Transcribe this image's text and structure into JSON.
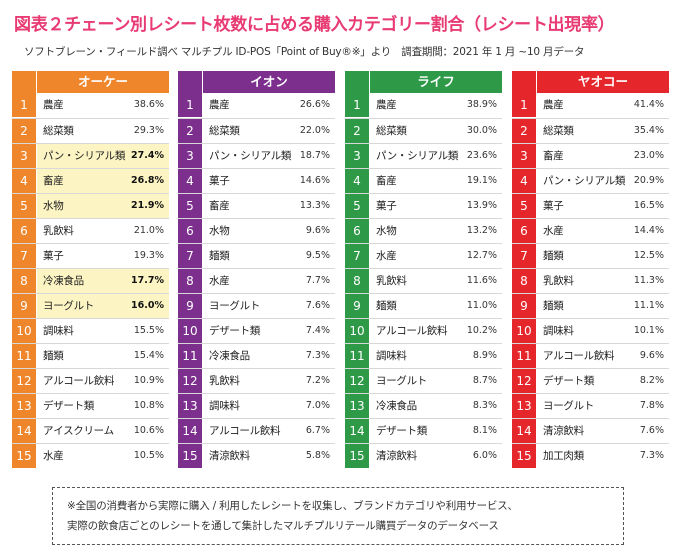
{
  "title": "図表２チェーン別レシート枚数に占める購入カテゴリー割合（レシート出現率）",
  "subtitle": "ソフトブレーン・フィールド調べ マルチプル ID-POS「Point of Buy®※」より　調査期間：2021 年 1 月 ~10 月データ",
  "note_lines": [
    "※全国の消費者から実際に購入 / 利用したレシートを収集し、ブランドカテゴリや利用サービス、",
    "実際の飲食店ごとのレシートを通して集計したマルチプルリテール購買データのデータベース"
  ],
  "chart_data": {
    "type": "table",
    "title": "図表２チェーン別レシート枚数に占める購入カテゴリー割合（レシート出現率）",
    "value_unit": "%",
    "highlight_color": "#fcf4c3",
    "chains": [
      {
        "name": "オーケー",
        "color": "#f0862c",
        "rows": [
          {
            "rank": "1",
            "category": "農産",
            "value": 38.6,
            "label": "38.6%",
            "highlight": false
          },
          {
            "rank": "2",
            "category": "総菜類",
            "value": 29.3,
            "label": "29.3%",
            "highlight": false
          },
          {
            "rank": "3",
            "category": "パン・シリアル類",
            "value": 27.4,
            "label": "27.4%",
            "highlight": true
          },
          {
            "rank": "4",
            "category": "畜産",
            "value": 26.8,
            "label": "26.8%",
            "highlight": true
          },
          {
            "rank": "5",
            "category": "水物",
            "value": 21.9,
            "label": "21.9%",
            "highlight": true
          },
          {
            "rank": "6",
            "category": "乳飲料",
            "value": 21.0,
            "label": "21.0%",
            "highlight": false
          },
          {
            "rank": "7",
            "category": "菓子",
            "value": 19.3,
            "label": "19.3%",
            "highlight": false
          },
          {
            "rank": "8",
            "category": "冷凍食品",
            "value": 17.7,
            "label": "17.7%",
            "highlight": true
          },
          {
            "rank": "9",
            "category": "ヨーグルト",
            "value": 16.0,
            "label": "16.0%",
            "highlight": true
          },
          {
            "rank": "10",
            "category": "調味料",
            "value": 15.5,
            "label": "15.5%",
            "highlight": false
          },
          {
            "rank": "11",
            "category": "麺類",
            "value": 15.4,
            "label": "15.4%",
            "highlight": false
          },
          {
            "rank": "12",
            "category": "アルコール飲料",
            "value": 10.9,
            "label": "10.9%",
            "highlight": false
          },
          {
            "rank": "13",
            "category": "デザート類",
            "value": 10.8,
            "label": "10.8%",
            "highlight": false
          },
          {
            "rank": "14",
            "category": "アイスクリーム",
            "value": 10.6,
            "label": "10.6%",
            "highlight": false
          },
          {
            "rank": "15",
            "category": "水産",
            "value": 10.5,
            "label": "10.5%",
            "highlight": false
          }
        ]
      },
      {
        "name": "イオン",
        "color": "#7c2f8c",
        "rows": [
          {
            "rank": "1",
            "category": "農産",
            "value": 26.6,
            "label": "26.6%",
            "highlight": false
          },
          {
            "rank": "2",
            "category": "総菜類",
            "value": 22.0,
            "label": "22.0%",
            "highlight": false
          },
          {
            "rank": "3",
            "category": "パン・シリアル類",
            "value": 18.7,
            "label": "18.7%",
            "highlight": false
          },
          {
            "rank": "4",
            "category": "菓子",
            "value": 14.6,
            "label": "14.6%",
            "highlight": false
          },
          {
            "rank": "5",
            "category": "畜産",
            "value": 13.3,
            "label": "13.3%",
            "highlight": false
          },
          {
            "rank": "6",
            "category": "水物",
            "value": 9.6,
            "label": "9.6%",
            "highlight": false
          },
          {
            "rank": "7",
            "category": "麺類",
            "value": 9.5,
            "label": "9.5%",
            "highlight": false
          },
          {
            "rank": "8",
            "category": "水産",
            "value": 7.7,
            "label": "7.7%",
            "highlight": false
          },
          {
            "rank": "9",
            "category": "ヨーグルト",
            "value": 7.6,
            "label": "7.6%",
            "highlight": false
          },
          {
            "rank": "10",
            "category": "デザート類",
            "value": 7.4,
            "label": "7.4%",
            "highlight": false
          },
          {
            "rank": "11",
            "category": "冷凍食品",
            "value": 7.3,
            "label": "7.3%",
            "highlight": false
          },
          {
            "rank": "12",
            "category": "乳飲料",
            "value": 7.2,
            "label": "7.2%",
            "highlight": false
          },
          {
            "rank": "13",
            "category": "調味料",
            "value": 7.0,
            "label": "7.0%",
            "highlight": false
          },
          {
            "rank": "14",
            "category": "アルコール飲料",
            "value": 6.7,
            "label": "6.7%",
            "highlight": false
          },
          {
            "rank": "15",
            "category": "清涼飲料",
            "value": 5.8,
            "label": "5.8%",
            "highlight": false
          }
        ]
      },
      {
        "name": "ライフ",
        "color": "#2e9a48",
        "rows": [
          {
            "rank": "1",
            "category": "農産",
            "value": 38.9,
            "label": "38.9%",
            "highlight": false
          },
          {
            "rank": "2",
            "category": "総菜類",
            "value": 30.0,
            "label": "30.0%",
            "highlight": false
          },
          {
            "rank": "3",
            "category": "パン・シリアル類",
            "value": 23.6,
            "label": "23.6%",
            "highlight": false
          },
          {
            "rank": "4",
            "category": "畜産",
            "value": 19.1,
            "label": "19.1%",
            "highlight": false
          },
          {
            "rank": "5",
            "category": "菓子",
            "value": 13.9,
            "label": "13.9%",
            "highlight": false
          },
          {
            "rank": "6",
            "category": "水物",
            "value": 13.2,
            "label": "13.2%",
            "highlight": false
          },
          {
            "rank": "7",
            "category": "水産",
            "value": 12.7,
            "label": "12.7%",
            "highlight": false
          },
          {
            "rank": "8",
            "category": "乳飲料",
            "value": 11.6,
            "label": "11.6%",
            "highlight": false
          },
          {
            "rank": "9",
            "category": "麺類",
            "value": 11.0,
            "label": "11.0%",
            "highlight": false
          },
          {
            "rank": "10",
            "category": "アルコール飲料",
            "value": 10.2,
            "label": "10.2%",
            "highlight": false
          },
          {
            "rank": "11",
            "category": "調味料",
            "value": 8.9,
            "label": "8.9%",
            "highlight": false
          },
          {
            "rank": "12",
            "category": "ヨーグルト",
            "value": 8.7,
            "label": "8.7%",
            "highlight": false
          },
          {
            "rank": "13",
            "category": "冷凍食品",
            "value": 8.3,
            "label": "8.3%",
            "highlight": false
          },
          {
            "rank": "14",
            "category": "デザート類",
            "value": 8.1,
            "label": "8.1%",
            "highlight": false
          },
          {
            "rank": "15",
            "category": "清涼飲料",
            "value": 6.0,
            "label": "6.0%",
            "highlight": false
          }
        ]
      },
      {
        "name": "ヤオコー",
        "color": "#e5262b",
        "rows": [
          {
            "rank": "1",
            "category": "農産",
            "value": 41.4,
            "label": "41.4%",
            "highlight": false
          },
          {
            "rank": "2",
            "category": "総菜類",
            "value": 35.4,
            "label": "35.4%",
            "highlight": false
          },
          {
            "rank": "3",
            "category": "畜産",
            "value": 23.0,
            "label": "23.0%",
            "highlight": false
          },
          {
            "rank": "4",
            "category": "パン・シリアル類",
            "value": 20.9,
            "label": "20.9%",
            "highlight": false
          },
          {
            "rank": "5",
            "category": "菓子",
            "value": 16.5,
            "label": "16.5%",
            "highlight": false
          },
          {
            "rank": "6",
            "category": "水産",
            "value": 14.4,
            "label": "14.4%",
            "highlight": false
          },
          {
            "rank": "7",
            "category": "麺類",
            "value": 12.5,
            "label": "12.5%",
            "highlight": false
          },
          {
            "rank": "8",
            "category": "乳飲料",
            "value": 11.3,
            "label": "11.3%",
            "highlight": false
          },
          {
            "rank": "9",
            "category": "麺類",
            "value": 11.1,
            "label": "11.1%",
            "highlight": false
          },
          {
            "rank": "10",
            "category": "調味料",
            "value": 10.1,
            "label": "10.1%",
            "highlight": false
          },
          {
            "rank": "11",
            "category": "アルコール飲料",
            "value": 9.6,
            "label": "9.6%",
            "highlight": false
          },
          {
            "rank": "12",
            "category": "デザート類",
            "value": 8.2,
            "label": "8.2%",
            "highlight": false
          },
          {
            "rank": "13",
            "category": "ヨーグルト",
            "value": 7.8,
            "label": "7.8%",
            "highlight": false
          },
          {
            "rank": "14",
            "category": "清涼飲料",
            "value": 7.6,
            "label": "7.6%",
            "highlight": false
          },
          {
            "rank": "15",
            "category": "加工肉類",
            "value": 7.3,
            "label": "7.3%",
            "highlight": false
          }
        ]
      }
    ]
  }
}
